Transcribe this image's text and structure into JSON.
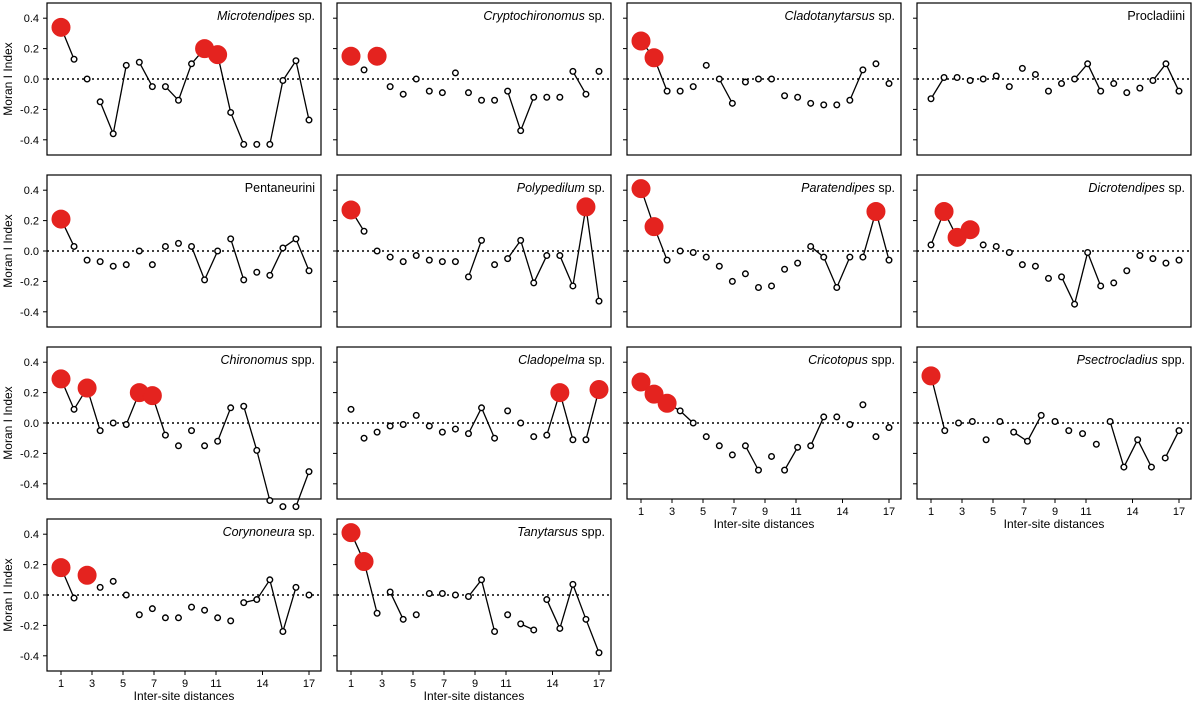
{
  "chart_data": {
    "type": "scatter",
    "ylabel": "Moran I Index",
    "xlabel": "Inter-site distances",
    "ylim": [
      -0.5,
      0.5
    ],
    "y_ticks": [
      "0.4",
      "0.2",
      "0.0",
      "-0.2",
      "-0.4"
    ],
    "x_ticks": [
      "1",
      "3",
      "5",
      "7",
      "9",
      "11",
      "14",
      "17"
    ],
    "x_tick_values": [
      1,
      3,
      5,
      7,
      9,
      11,
      14,
      17
    ],
    "colors": {
      "significant": "#e4231f",
      "open": "#ffffff",
      "line": "#000000"
    },
    "panels": [
      {
        "title_italic": "Microtendipes",
        "title_rest": " sp.",
        "row": 0,
        "col": 0,
        "x_axis": false,
        "values": [
          0.34,
          0.13,
          0.0,
          -0.15,
          -0.36,
          0.09,
          0.11,
          -0.05,
          -0.05,
          -0.14,
          0.1,
          0.2,
          0.16,
          -0.22,
          -0.43,
          -0.43,
          -0.43,
          -0.01,
          0.12,
          -0.27
        ],
        "significant": [
          0,
          11,
          12
        ],
        "segments": [
          [
            0,
            1
          ],
          [
            3,
            4
          ],
          [
            4,
            5
          ],
          [
            6,
            7
          ],
          [
            8,
            9
          ],
          [
            9,
            10
          ],
          [
            10,
            11
          ],
          [
            12,
            13
          ],
          [
            13,
            14
          ],
          [
            16,
            17
          ],
          [
            17,
            18
          ],
          [
            18,
            19
          ]
        ]
      },
      {
        "title_italic": "Cryptochironomus",
        "title_rest": " sp.",
        "row": 0,
        "col": 1,
        "x_axis": false,
        "values": [
          0.15,
          0.06,
          0.15,
          -0.05,
          -0.1,
          0.0,
          -0.08,
          -0.09,
          0.04,
          -0.09,
          -0.14,
          -0.14,
          -0.08,
          -0.34,
          -0.12,
          -0.12,
          -0.12,
          0.05,
          -0.1,
          0.05
        ],
        "significant": [
          0,
          2
        ],
        "segments": [
          [
            12,
            13
          ],
          [
            13,
            14
          ],
          [
            17,
            18
          ]
        ]
      },
      {
        "title_italic": "Cladotanytarsus",
        "title_rest": " sp.",
        "row": 0,
        "col": 2,
        "x_axis": false,
        "values": [
          0.25,
          0.14,
          -0.08,
          -0.08,
          -0.05,
          0.09,
          0.0,
          -0.16,
          -0.02,
          0.0,
          0.0,
          -0.11,
          -0.12,
          -0.16,
          -0.17,
          -0.17,
          -0.14,
          0.06,
          0.1,
          -0.03
        ],
        "significant": [
          0,
          1
        ],
        "segments": [
          [
            0,
            1
          ],
          [
            1,
            2
          ],
          [
            6,
            7
          ],
          [
            16,
            17
          ]
        ]
      },
      {
        "title_italic": "",
        "title_rest": "Procladiini",
        "row": 0,
        "col": 3,
        "x_axis": false,
        "values": [
          -0.13,
          0.01,
          0.01,
          -0.01,
          0.0,
          0.02,
          -0.05,
          0.07,
          0.03,
          -0.08,
          -0.03,
          0.0,
          0.1,
          -0.08,
          -0.03,
          -0.09,
          -0.06,
          -0.01,
          0.1,
          -0.08
        ],
        "significant": [],
        "segments": [
          [
            0,
            1
          ],
          [
            11,
            12
          ],
          [
            12,
            13
          ],
          [
            17,
            18
          ],
          [
            18,
            19
          ]
        ]
      },
      {
        "title_italic": "",
        "title_rest": "Pentaneurini",
        "row": 1,
        "col": 0,
        "x_axis": false,
        "values": [
          0.21,
          0.03,
          -0.06,
          -0.07,
          -0.1,
          -0.09,
          0.0,
          -0.09,
          0.03,
          0.05,
          0.03,
          -0.19,
          0.0,
          0.08,
          -0.19,
          -0.14,
          -0.16,
          0.02,
          0.08,
          -0.13
        ],
        "significant": [
          0
        ],
        "segments": [
          [
            0,
            1
          ],
          [
            10,
            11
          ],
          [
            11,
            12
          ],
          [
            13,
            14
          ],
          [
            16,
            17
          ],
          [
            17,
            18
          ],
          [
            18,
            19
          ]
        ]
      },
      {
        "title_italic": "Polypedilum",
        "title_rest": " sp.",
        "row": 1,
        "col": 1,
        "x_axis": false,
        "values": [
          0.27,
          0.13,
          0.0,
          -0.04,
          -0.07,
          -0.03,
          -0.06,
          -0.07,
          -0.07,
          -0.17,
          0.07,
          -0.09,
          -0.05,
          0.07,
          -0.21,
          -0.03,
          -0.03,
          -0.23,
          0.29,
          -0.33
        ],
        "significant": [
          0,
          18
        ],
        "segments": [
          [
            0,
            1
          ],
          [
            9,
            10
          ],
          [
            12,
            13
          ],
          [
            13,
            14
          ],
          [
            14,
            15
          ],
          [
            16,
            17
          ],
          [
            17,
            18
          ],
          [
            18,
            19
          ]
        ]
      },
      {
        "title_italic": "Paratendipes",
        "title_rest": " sp.",
        "row": 1,
        "col": 2,
        "x_axis": false,
        "values": [
          0.41,
          0.16,
          -0.06,
          0.0,
          -0.01,
          -0.04,
          -0.1,
          -0.2,
          -0.15,
          -0.24,
          -0.23,
          -0.12,
          -0.08,
          0.03,
          -0.04,
          -0.24,
          -0.04,
          -0.04,
          0.26,
          -0.06
        ],
        "significant": [
          0,
          1,
          18
        ],
        "segments": [
          [
            0,
            1
          ],
          [
            1,
            2
          ],
          [
            13,
            14
          ],
          [
            14,
            15
          ],
          [
            15,
            16
          ],
          [
            17,
            18
          ],
          [
            18,
            19
          ]
        ]
      },
      {
        "title_italic": "Dicrotendipes",
        "title_rest": " sp.",
        "row": 1,
        "col": 3,
        "x_axis": false,
        "values": [
          0.04,
          0.26,
          0.09,
          0.14,
          0.04,
          0.03,
          -0.01,
          -0.09,
          -0.1,
          -0.18,
          -0.17,
          -0.35,
          -0.01,
          -0.23,
          -0.21,
          -0.13,
          -0.03,
          -0.05,
          -0.08,
          -0.06
        ],
        "significant": [
          1,
          2,
          3
        ],
        "segments": [
          [
            0,
            1
          ],
          [
            1,
            2
          ],
          [
            2,
            3
          ],
          [
            10,
            11
          ],
          [
            11,
            12
          ],
          [
            12,
            13
          ]
        ]
      },
      {
        "title_italic": "Chironomus",
        "title_rest": " spp.",
        "row": 2,
        "col": 0,
        "x_axis": false,
        "values": [
          0.29,
          0.09,
          0.23,
          -0.05,
          0.0,
          -0.01,
          0.2,
          0.18,
          -0.08,
          -0.15,
          -0.05,
          -0.15,
          -0.12,
          0.1,
          0.11,
          -0.18,
          -0.51,
          -0.55,
          -0.55,
          -0.32
        ],
        "significant": [
          0,
          2,
          6,
          7
        ],
        "segments": [
          [
            0,
            1
          ],
          [
            1,
            2
          ],
          [
            2,
            3
          ],
          [
            5,
            6
          ],
          [
            7,
            8
          ],
          [
            12,
            13
          ],
          [
            14,
            15
          ],
          [
            15,
            16
          ],
          [
            18,
            19
          ]
        ]
      },
      {
        "title_italic": "Cladopelma",
        "title_rest": " sp.",
        "row": 2,
        "col": 1,
        "x_axis": false,
        "values": [
          0.09,
          -0.1,
          -0.06,
          -0.02,
          -0.01,
          0.05,
          -0.02,
          -0.06,
          -0.04,
          -0.07,
          0.1,
          -0.1,
          0.08,
          0.0,
          -0.09,
          -0.08,
          0.2,
          -0.11,
          -0.11,
          0.22
        ],
        "significant": [
          16,
          19
        ],
        "segments": [
          [
            9,
            10
          ],
          [
            10,
            11
          ],
          [
            15,
            16
          ],
          [
            16,
            17
          ],
          [
            18,
            19
          ]
        ]
      },
      {
        "title_italic": "Cricotopus",
        "title_rest": " spp.",
        "row": 2,
        "col": 2,
        "x_axis": true,
        "values": [
          0.27,
          0.19,
          0.13,
          0.08,
          0.0,
          -0.09,
          -0.15,
          -0.21,
          -0.15,
          -0.31,
          -0.22,
          -0.31,
          -0.16,
          -0.15,
          0.04,
          0.04,
          -0.01,
          0.12,
          -0.09,
          -0.03
        ],
        "significant": [
          0,
          1,
          2
        ],
        "segments": [
          [
            0,
            1
          ],
          [
            1,
            2
          ],
          [
            2,
            3
          ],
          [
            3,
            4
          ],
          [
            8,
            9
          ],
          [
            11,
            12
          ],
          [
            13,
            14
          ]
        ]
      },
      {
        "title_italic": "Psectrocladius",
        "title_rest": " spp.",
        "row": 2,
        "col": 3,
        "x_axis": true,
        "values": [
          0.31,
          -0.05,
          0.0,
          0.01,
          -0.11,
          0.01,
          -0.06,
          -0.12,
          0.05,
          0.01,
          -0.05,
          -0.07,
          -0.14,
          0.01,
          -0.29,
          -0.11,
          -0.29,
          -0.23,
          -0.05
        ],
        "significant": [
          0
        ],
        "segments": [
          [
            0,
            1
          ],
          [
            6,
            7
          ],
          [
            7,
            8
          ],
          [
            13,
            14
          ],
          [
            14,
            15
          ],
          [
            15,
            16
          ],
          [
            17,
            18
          ]
        ]
      },
      {
        "title_italic": "Corynoneura",
        "title_rest": " sp.",
        "row": 3,
        "col": 0,
        "x_axis": true,
        "values": [
          0.18,
          -0.02,
          0.13,
          0.05,
          0.09,
          0.0,
          -0.13,
          -0.09,
          -0.15,
          -0.15,
          -0.08,
          -0.1,
          -0.15,
          -0.17,
          -0.05,
          -0.03,
          0.1,
          -0.24,
          0.05,
          0.0
        ],
        "significant": [
          0,
          2
        ],
        "segments": [
          [
            0,
            1
          ],
          [
            14,
            15
          ],
          [
            15,
            16
          ],
          [
            16,
            17
          ],
          [
            17,
            18
          ]
        ]
      },
      {
        "title_italic": "Tanytarsus",
        "title_rest": " spp.",
        "row": 3,
        "col": 1,
        "x_axis": true,
        "values": [
          0.41,
          0.22,
          -0.12,
          0.02,
          -0.16,
          -0.13,
          0.01,
          0.01,
          0.0,
          -0.01,
          0.1,
          -0.24,
          -0.13,
          -0.19,
          -0.23,
          -0.03,
          -0.22,
          0.07,
          -0.16,
          -0.38
        ],
        "significant": [
          0,
          1
        ],
        "segments": [
          [
            0,
            1
          ],
          [
            1,
            2
          ],
          [
            3,
            4
          ],
          [
            9,
            10
          ],
          [
            10,
            11
          ],
          [
            13,
            14
          ],
          [
            15,
            16
          ],
          [
            16,
            17
          ],
          [
            17,
            18
          ],
          [
            18,
            19
          ]
        ]
      }
    ]
  }
}
